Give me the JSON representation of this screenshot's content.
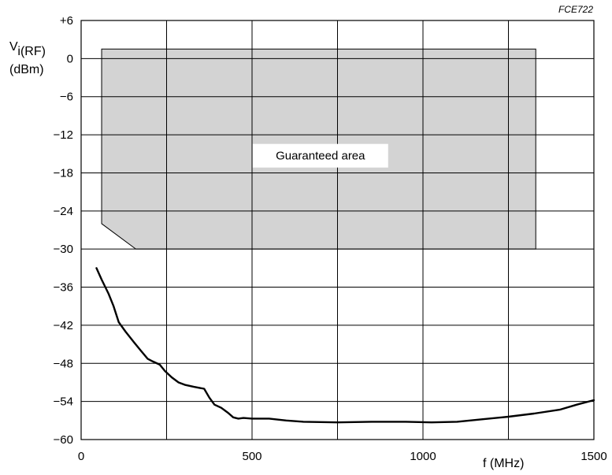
{
  "figure_code": "FCE722",
  "chart_data": {
    "type": "line",
    "title": "",
    "xlabel": "f (MHz)",
    "ylabel_main": "V",
    "ylabel_sub": "i(RF)",
    "ylabel_unit": "(dBm)",
    "xlim": [
      0,
      1500
    ],
    "ylim": [
      -60,
      6
    ],
    "grid": true,
    "x_ticks": [
      {
        "value": 0,
        "label": "0"
      },
      {
        "value": 500,
        "label": "500"
      },
      {
        "value": 1000,
        "label": "1000"
      },
      {
        "value": 1500,
        "label": "1500"
      }
    ],
    "x_grid": [
      0,
      250,
      500,
      750,
      1000,
      1250,
      1500
    ],
    "y_ticks": [
      {
        "value": 6,
        "label": "+6"
      },
      {
        "value": 0,
        "label": "0"
      },
      {
        "value": -6,
        "label": "−6"
      },
      {
        "value": -12,
        "label": "−12"
      },
      {
        "value": -18,
        "label": "−18"
      },
      {
        "value": -24,
        "label": "−24"
      },
      {
        "value": -30,
        "label": "−30"
      },
      {
        "value": -36,
        "label": "−36"
      },
      {
        "value": -42,
        "label": "−42"
      },
      {
        "value": -48,
        "label": "−48"
      },
      {
        "value": -54,
        "label": "−54"
      },
      {
        "value": -60,
        "label": "−60"
      }
    ],
    "guaranteed_area": {
      "label": "Guaranteed area",
      "fill": "#d3d3d3",
      "polygon": [
        [
          60,
          1.5
        ],
        [
          1330,
          1.5
        ],
        [
          1330,
          -30
        ],
        [
          160,
          -30
        ],
        [
          60,
          -26
        ]
      ],
      "label_position": [
        700,
        -15.3
      ]
    },
    "series": [
      {
        "color": "#000000",
        "x": [
          45,
          60,
          80,
          95,
          110,
          130,
          155,
          175,
          195,
          210,
          230,
          245,
          265,
          285,
          305,
          330,
          360,
          375,
          390,
          410,
          430,
          445,
          460,
          475,
          500,
          550,
          600,
          650,
          750,
          850,
          950,
          1025,
          1100,
          1175,
          1250,
          1325,
          1400,
          1450,
          1500
        ],
        "y": [
          -33,
          -34.8,
          -37,
          -39,
          -41.5,
          -43,
          -44.7,
          -46,
          -47.3,
          -47.7,
          -48.2,
          -49.2,
          -50.2,
          -51,
          -51.4,
          -51.7,
          -52,
          -53.4,
          -54.5,
          -55,
          -55.8,
          -56.5,
          -56.7,
          -56.6,
          -56.7,
          -56.7,
          -57,
          -57.2,
          -57.3,
          -57.2,
          -57.2,
          -57.3,
          -57.2,
          -56.8,
          -56.4,
          -55.9,
          -55.3,
          -54.5,
          -53.8
        ]
      }
    ]
  }
}
